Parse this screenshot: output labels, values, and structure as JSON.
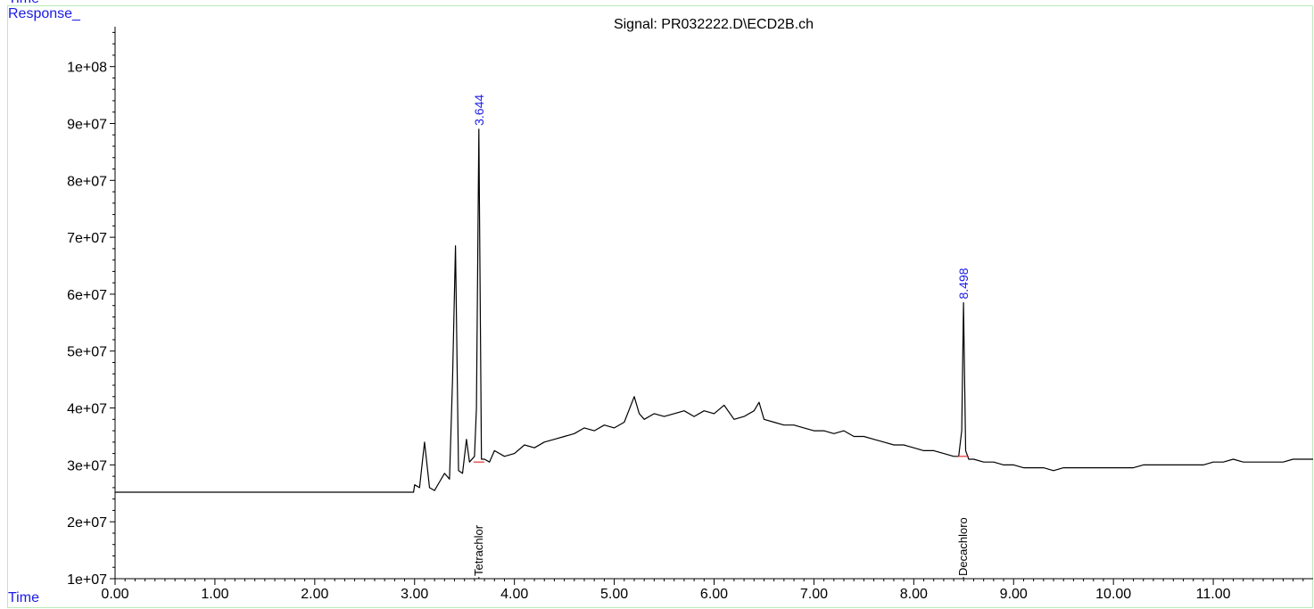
{
  "header": {
    "top_label": "Time",
    "y_axis_title": "Response_",
    "x_axis_title": "Time"
  },
  "colors": {
    "trace": "#000000",
    "peak_label": "#1a1ae6",
    "baseline_marks": "#e03030",
    "frame": "#b8ecb8"
  },
  "chart_data": {
    "type": "line",
    "title": "Signal: PR032222.D\\ECD2B.ch",
    "xlabel": "Time",
    "ylabel": "Response_",
    "xlim": [
      0,
      12.0
    ],
    "ylim": [
      10000000,
      107000000
    ],
    "x_ticks": [
      0,
      1,
      2,
      3,
      4,
      5,
      6,
      7,
      8,
      9,
      10,
      11
    ],
    "x_tick_labels": [
      "0.00",
      "1.00",
      "2.00",
      "3.00",
      "4.00",
      "5.00",
      "6.00",
      "7.00",
      "8.00",
      "9.00",
      "10.00",
      "11.00"
    ],
    "y_ticks": [
      10000000,
      20000000,
      30000000,
      40000000,
      50000000,
      60000000,
      70000000,
      80000000,
      90000000,
      100000000
    ],
    "y_tick_labels": [
      "1e+07",
      "2e+07",
      "3e+07",
      "4e+07",
      "5e+07",
      "6e+07",
      "7e+07",
      "8e+07",
      "9e+07",
      "1e+08"
    ],
    "grid": false,
    "series": [
      {
        "x": [
          0.0,
          2.99,
          3.0,
          3.05,
          3.1,
          3.15,
          3.2,
          3.25,
          3.3,
          3.35,
          3.38,
          3.41,
          3.44,
          3.48,
          3.52,
          3.55,
          3.6,
          3.62,
          3.644,
          3.67,
          3.7,
          3.75,
          3.8,
          3.9,
          4.0,
          4.1,
          4.2,
          4.3,
          4.4,
          4.5,
          4.6,
          4.7,
          4.8,
          4.9,
          5.0,
          5.1,
          5.2,
          5.25,
          5.3,
          5.4,
          5.5,
          5.6,
          5.7,
          5.8,
          5.9,
          6.0,
          6.1,
          6.2,
          6.3,
          6.4,
          6.45,
          6.5,
          6.6,
          6.7,
          6.8,
          6.9,
          7.0,
          7.1,
          7.2,
          7.3,
          7.4,
          7.5,
          7.6,
          7.7,
          7.8,
          7.9,
          8.0,
          8.1,
          8.2,
          8.3,
          8.4,
          8.45,
          8.48,
          8.498,
          8.52,
          8.55,
          8.6,
          8.7,
          8.8,
          8.9,
          9.0,
          9.1,
          9.2,
          9.3,
          9.4,
          9.5,
          9.6,
          9.7,
          9.8,
          9.9,
          10.0,
          10.1,
          10.2,
          10.3,
          10.4,
          10.5,
          10.6,
          10.7,
          10.8,
          10.9,
          11.0,
          11.1,
          11.2,
          11.3,
          11.4,
          11.5,
          11.6,
          11.7,
          11.8,
          11.9,
          12.0
        ],
        "y": [
          25200000,
          25200000,
          26500000,
          26000000,
          34000000,
          26000000,
          25500000,
          27000000,
          28500000,
          27500000,
          45000000,
          68500000,
          29000000,
          28500000,
          34500000,
          30500000,
          31500000,
          40000000,
          89000000,
          31000000,
          31000000,
          30500000,
          32500000,
          31500000,
          32000000,
          33500000,
          33000000,
          34000000,
          34500000,
          35000000,
          35500000,
          36500000,
          36000000,
          37000000,
          36500000,
          37500000,
          42000000,
          39000000,
          38000000,
          39000000,
          38500000,
          39000000,
          39500000,
          38500000,
          39500000,
          39000000,
          40500000,
          38000000,
          38500000,
          39500000,
          41000000,
          38000000,
          37500000,
          37000000,
          37000000,
          36500000,
          36000000,
          36000000,
          35500000,
          36000000,
          35000000,
          35000000,
          34500000,
          34000000,
          33500000,
          33500000,
          33000000,
          32500000,
          32500000,
          32000000,
          31500000,
          31500000,
          36000000,
          58500000,
          32500000,
          31000000,
          31000000,
          30500000,
          30500000,
          30000000,
          30000000,
          29500000,
          29500000,
          29500000,
          29000000,
          29500000,
          29500000,
          29500000,
          29500000,
          29500000,
          29500000,
          29500000,
          29500000,
          30000000,
          30000000,
          30000000,
          30000000,
          30000000,
          30000000,
          30000000,
          30500000,
          30500000,
          31000000,
          30500000,
          30500000,
          30500000,
          30500000,
          30500000,
          31000000,
          31000000,
          31000000
        ]
      }
    ],
    "peak_labels": [
      {
        "x": 3.644,
        "y": 89000000,
        "text": "3.644"
      },
      {
        "x": 8.498,
        "y": 58500000,
        "text": "8.498"
      }
    ],
    "compound_labels": [
      {
        "x": 3.644,
        "text": "Tetrachlor"
      },
      {
        "x": 8.498,
        "text": "Decachloro"
      }
    ]
  }
}
